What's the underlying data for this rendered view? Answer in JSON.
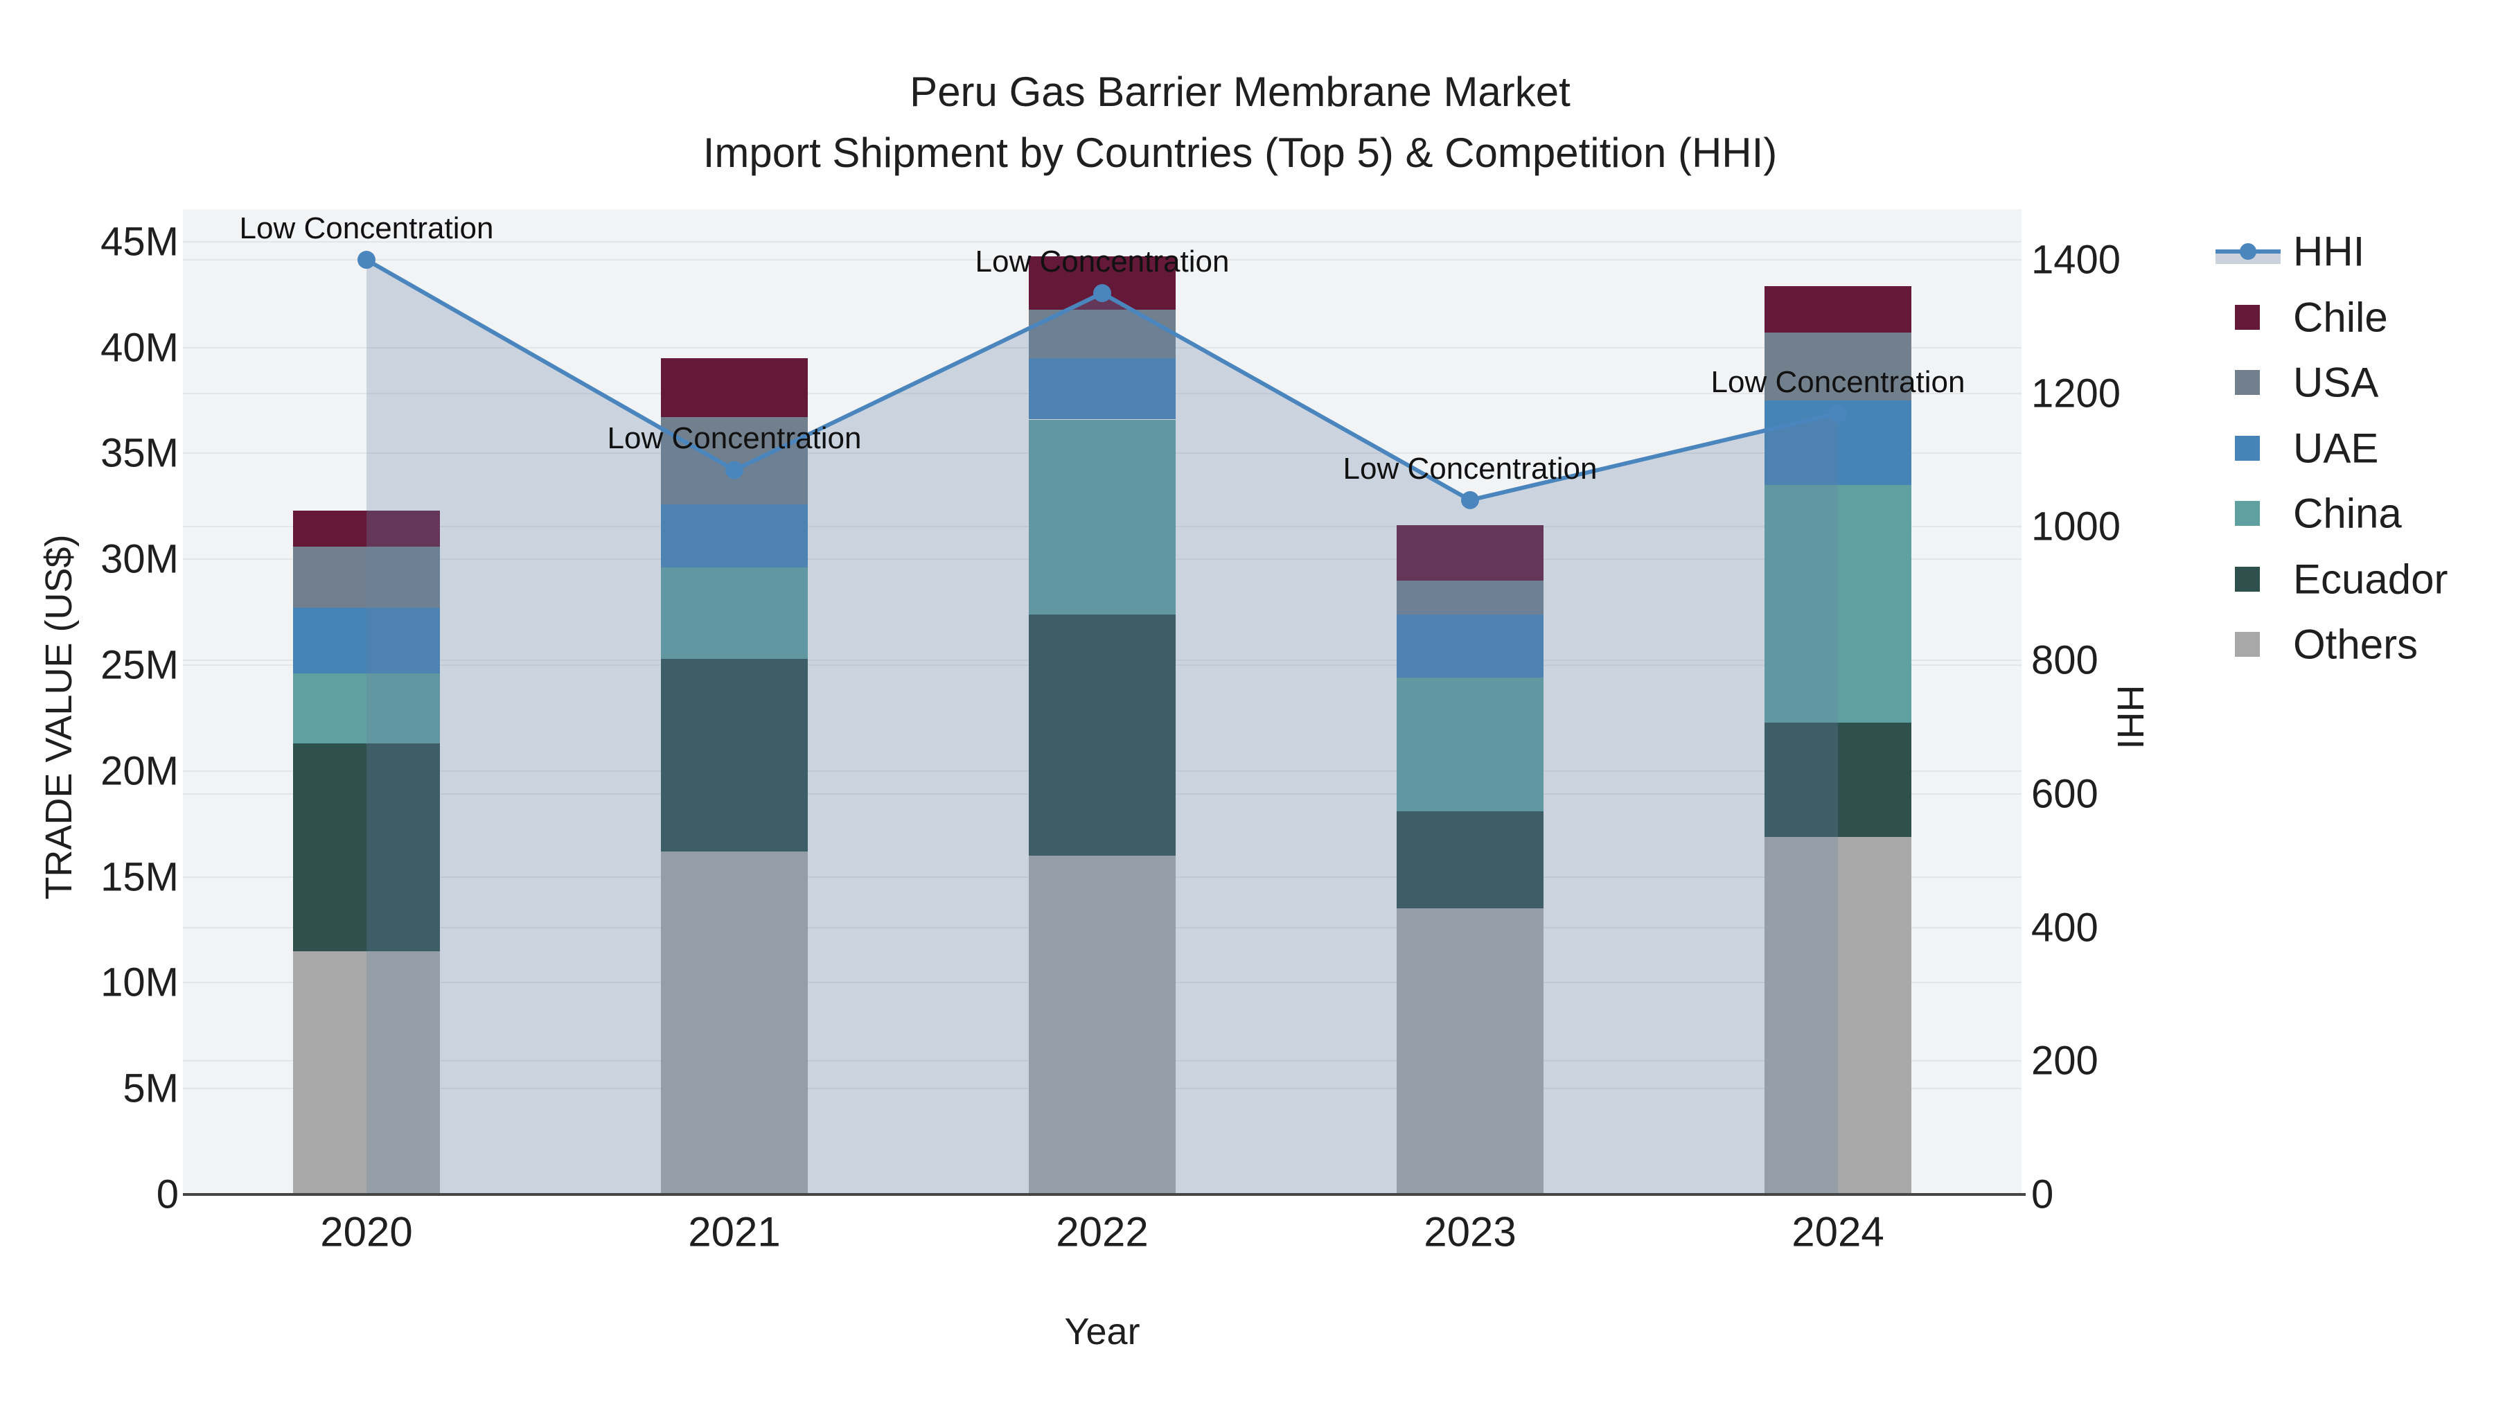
{
  "title": {
    "line1": "Peru Gas Barrier Membrane Market",
    "line2": "Import Shipment by Countries (Top 5) & Competition (HHI)"
  },
  "axes": {
    "x": {
      "title": "Year",
      "categories": [
        "2020",
        "2021",
        "2022",
        "2023",
        "2024"
      ]
    },
    "y_left": {
      "title": "TRADE VALUE (US$)",
      "tick_labels": [
        "0",
        "5M",
        "10M",
        "15M",
        "20M",
        "25M",
        "30M",
        "35M",
        "40M",
        "45M"
      ],
      "tick_values": [
        0,
        5,
        10,
        15,
        20,
        25,
        30,
        35,
        40,
        45
      ]
    },
    "y_right": {
      "title": "HHI",
      "tick_labels": [
        "0",
        "200",
        "400",
        "600",
        "800",
        "1000",
        "1200",
        "1400"
      ],
      "tick_values": [
        0,
        200,
        400,
        600,
        800,
        1000,
        1200,
        1400
      ]
    }
  },
  "legend": {
    "items": [
      {
        "label": "HHI",
        "type": "line",
        "color": "#4a86bd"
      },
      {
        "label": "Chile",
        "type": "swatch",
        "color": "#651939"
      },
      {
        "label": "USA",
        "type": "swatch",
        "color": "#72808e"
      },
      {
        "label": "UAE",
        "type": "swatch",
        "color": "#4683b6"
      },
      {
        "label": "China",
        "type": "swatch",
        "color": "#5fa0a0"
      },
      {
        "label": "Ecuador",
        "type": "swatch",
        "color": "#2e514e"
      },
      {
        "label": "Others",
        "type": "swatch",
        "color": "#a8a8a8"
      }
    ]
  },
  "chart_data": {
    "type": "bar",
    "subtype": "stacked-bars-with-line-overlay",
    "x": [
      "2020",
      "2021",
      "2022",
      "2023",
      "2024"
    ],
    "bar_value_unit": "million US$ (left axis, TRADE VALUE)",
    "stack_order_bottom_to_top": [
      "Others",
      "Ecuador",
      "China",
      "UAE",
      "USA",
      "Chile"
    ],
    "series": [
      {
        "name": "Others",
        "color": "#a8a8a8",
        "values": [
          11.5,
          16.2,
          16.0,
          13.5,
          16.9
        ]
      },
      {
        "name": "Ecuador",
        "color": "#2e514e",
        "values": [
          9.8,
          9.1,
          11.4,
          4.6,
          5.4
        ]
      },
      {
        "name": "China",
        "color": "#5fa0a0",
        "values": [
          3.3,
          4.3,
          9.2,
          6.3,
          11.2
        ]
      },
      {
        "name": "UAE",
        "color": "#4683b6",
        "values": [
          3.1,
          3.0,
          2.9,
          3.0,
          4.0
        ]
      },
      {
        "name": "USA",
        "color": "#72808e",
        "values": [
          2.9,
          4.1,
          2.3,
          1.6,
          3.2
        ]
      },
      {
        "name": "Chile",
        "color": "#651939",
        "values": [
          1.7,
          2.8,
          2.5,
          2.6,
          2.2
        ]
      }
    ],
    "bar_totals": [
      32.3,
      39.5,
      44.3,
      31.6,
      42.9
    ],
    "line": {
      "name": "HHI",
      "axis": "right",
      "color": "#4a86bd",
      "fill": "tozeroy",
      "fill_color": "rgba(100,130,165,0.28)",
      "values": [
        1400,
        1085,
        1350,
        1040,
        1170
      ]
    },
    "annotations": [
      "Low Concentration",
      "Low Concentration",
      "Low Concentration",
      "Low Concentration",
      "Low Concentration"
    ],
    "title": "Peru Gas Barrier Membrane Market\nImport Shipment by Countries (Top 5) & Competition (HHI)",
    "xlabel": "Year",
    "ylabel_left": "TRADE VALUE (US$)",
    "ylabel_right": "HHI",
    "ylim_left": [
      0,
      46.5
    ],
    "ylim_right": [
      0,
      1475
    ],
    "grid": true,
    "legend_position": "right"
  }
}
